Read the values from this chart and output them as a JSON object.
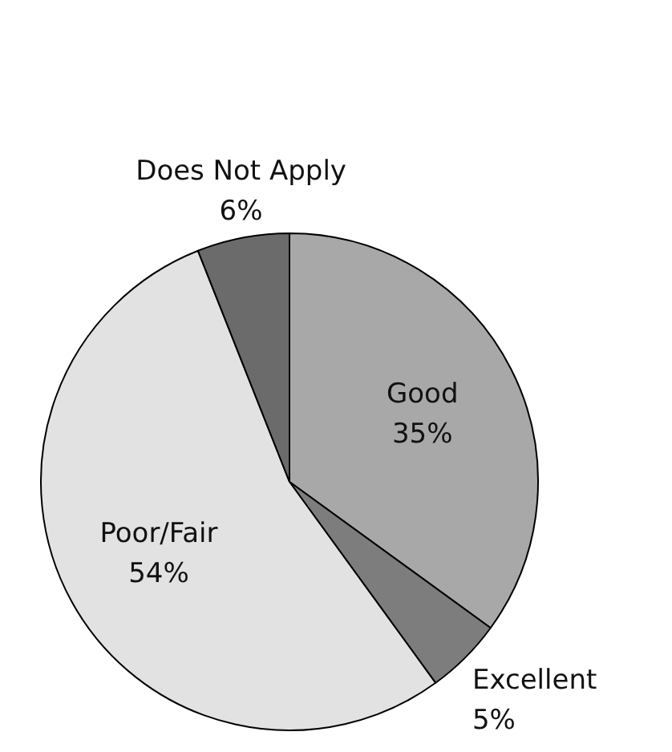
{
  "chart_data": {
    "type": "pie",
    "categories": [
      "Good",
      "Excellent",
      "Poor/Fair",
      "Does Not Apply"
    ],
    "values": [
      35,
      5,
      54,
      6
    ],
    "colors": [
      "#a8a8a8",
      "#7d7d7d",
      "#e2e2e2",
      "#6b6b6b"
    ],
    "value_labels": [
      "35%",
      "5%",
      "54%",
      "6%"
    ]
  }
}
